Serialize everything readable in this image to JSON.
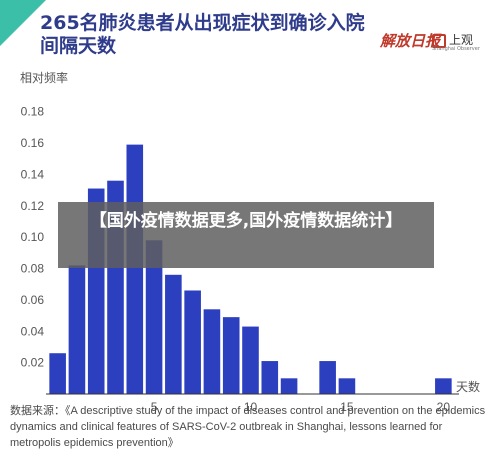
{
  "title": "265名肺炎患者从出现症状到确诊入院间隔天数",
  "logos": {
    "paper": "解放日报",
    "app": "上观",
    "app_sub": "Shanghai Observer"
  },
  "overlay_text": "【国外疫情数据更多,国外疫情数据统计】",
  "source": "数据来源：《A descriptive study of the impact of diseases control and prevention on the epidemics dynamics and clinical features of SARS-CoV-2 outbreak in Shanghai, lessons learned for metropolis epidemics prevention》",
  "chart_data": {
    "type": "bar",
    "title": "265名肺炎患者从出现症状到确诊入院间隔天数",
    "ylabel": "相对频率",
    "xlabel": "天数",
    "x": [
      0,
      1,
      2,
      3,
      4,
      5,
      6,
      7,
      8,
      9,
      10,
      11,
      12,
      13,
      14,
      15,
      16,
      17,
      18,
      19,
      20
    ],
    "values": [
      0.026,
      0.082,
      0.131,
      0.136,
      0.159,
      0.098,
      0.076,
      0.066,
      0.054,
      0.049,
      0.043,
      0.021,
      0.01,
      0,
      0.021,
      0.01,
      0,
      0,
      0,
      0,
      0.01
    ],
    "xticks": [
      5,
      10,
      15,
      20
    ],
    "yticks": [
      0.02,
      0.04,
      0.06,
      0.08,
      0.1,
      0.12,
      0.14,
      0.16,
      0.18
    ],
    "ylim": [
      0,
      0.19
    ],
    "xlim": [
      -0.5,
      20.5
    ],
    "bar_color": "#2b3fbf",
    "grid": false
  }
}
